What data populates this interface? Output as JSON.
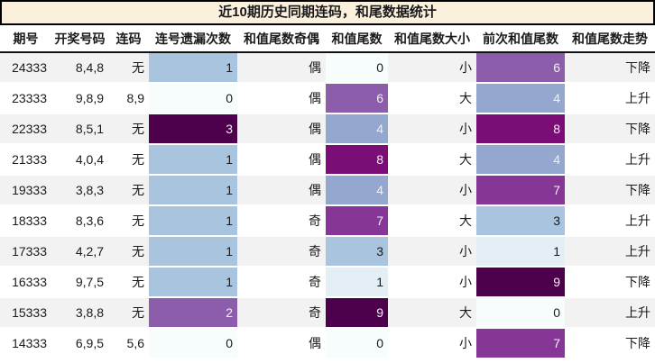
{
  "title": "近10期历史同期连码，和尾数据统计",
  "colors": {
    "title_bg": "#fbf0dc",
    "title_border": "#000000",
    "header_rule": "#111111",
    "row_stripe_odd": "#f2f2f2",
    "row_stripe_even": "#ffffff",
    "heat_text_light": "#f1f1f1",
    "heat_text_dark": "#1a1a1a",
    "heat_scale_low": "#f7fcfd",
    "heat_scale_high": "#4d004b"
  },
  "table": {
    "headers": [
      "期号",
      "开奖号码",
      "连码",
      "连号遗漏次数",
      "和值尾数奇偶",
      "和值尾数",
      "和值尾数大小",
      "前次和值尾数",
      "和值尾数走势"
    ],
    "rows": [
      {
        "period": "24333",
        "numbers": "8,4,8",
        "streak": "无",
        "miss": "1",
        "miss_bg": "#a9c4de",
        "miss_color": "#1a1a1a",
        "parity": "偶",
        "tail": "0",
        "tail_bg": "#f7fcfd",
        "tail_color": "#1a1a1a",
        "size": "小",
        "prev": "6",
        "prev_bg": "#8b5daa",
        "prev_color": "#f1f1f1",
        "trend": "下降"
      },
      {
        "period": "23333",
        "numbers": "9,8,9",
        "streak": "8,9",
        "miss": "0",
        "miss_bg": "#f7fcfd",
        "miss_color": "#1a1a1a",
        "parity": "偶",
        "tail": "6",
        "tail_bg": "#8b5daa",
        "tail_color": "#f1f1f1",
        "size": "大",
        "prev": "4",
        "prev_bg": "#94a7cf",
        "prev_color": "#f1f1f1",
        "trend": "上升"
      },
      {
        "period": "22333",
        "numbers": "8,5,1",
        "streak": "无",
        "miss": "3",
        "miss_bg": "#4d004b",
        "miss_color": "#f1f1f1",
        "parity": "偶",
        "tail": "4",
        "tail_bg": "#94a7cf",
        "tail_color": "#f1f1f1",
        "size": "小",
        "prev": "8",
        "prev_bg": "#7b0d77",
        "prev_color": "#f1f1f1",
        "trend": "下降"
      },
      {
        "period": "21333",
        "numbers": "4,0,4",
        "streak": "无",
        "miss": "1",
        "miss_bg": "#a9c4de",
        "miss_color": "#1a1a1a",
        "parity": "偶",
        "tail": "8",
        "tail_bg": "#7b0d77",
        "tail_color": "#f1f1f1",
        "size": "大",
        "prev": "4",
        "prev_bg": "#94a7cf",
        "prev_color": "#f1f1f1",
        "trend": "上升"
      },
      {
        "period": "19333",
        "numbers": "3,8,3",
        "streak": "无",
        "miss": "1",
        "miss_bg": "#a9c4de",
        "miss_color": "#1a1a1a",
        "parity": "偶",
        "tail": "4",
        "tail_bg": "#94a7cf",
        "tail_color": "#f1f1f1",
        "size": "小",
        "prev": "7",
        "prev_bg": "#863696",
        "prev_color": "#f1f1f1",
        "trend": "下降"
      },
      {
        "period": "18333",
        "numbers": "8,3,6",
        "streak": "无",
        "miss": "1",
        "miss_bg": "#a9c4de",
        "miss_color": "#1a1a1a",
        "parity": "奇",
        "tail": "7",
        "tail_bg": "#863696",
        "tail_color": "#f1f1f1",
        "size": "大",
        "prev": "3",
        "prev_bg": "#a9c4de",
        "prev_color": "#1a1a1a",
        "trend": "上升"
      },
      {
        "period": "17333",
        "numbers": "4,2,7",
        "streak": "无",
        "miss": "1",
        "miss_bg": "#a9c4de",
        "miss_color": "#1a1a1a",
        "parity": "奇",
        "tail": "3",
        "tail_bg": "#a9c4de",
        "tail_color": "#1a1a1a",
        "size": "小",
        "prev": "1",
        "prev_bg": "#e3eef5",
        "prev_color": "#1a1a1a",
        "trend": "上升"
      },
      {
        "period": "16333",
        "numbers": "9,7,5",
        "streak": "无",
        "miss": "1",
        "miss_bg": "#a9c4de",
        "miss_color": "#1a1a1a",
        "parity": "奇",
        "tail": "1",
        "tail_bg": "#e3eef5",
        "tail_color": "#1a1a1a",
        "size": "小",
        "prev": "9",
        "prev_bg": "#4d004b",
        "prev_color": "#f1f1f1",
        "trend": "下降"
      },
      {
        "period": "15333",
        "numbers": "3,8,8",
        "streak": "无",
        "miss": "2",
        "miss_bg": "#8b5daa",
        "miss_color": "#f1f1f1",
        "parity": "奇",
        "tail": "9",
        "tail_bg": "#4d004b",
        "tail_color": "#f1f1f1",
        "size": "大",
        "prev": "0",
        "prev_bg": "#f7fcfd",
        "prev_color": "#1a1a1a",
        "trend": "上升"
      },
      {
        "period": "14333",
        "numbers": "6,9,5",
        "streak": "5,6",
        "miss": "0",
        "miss_bg": "#f7fcfd",
        "miss_color": "#1a1a1a",
        "parity": "偶",
        "tail": "0",
        "tail_bg": "#f7fcfd",
        "tail_color": "#1a1a1a",
        "size": "小",
        "prev": "7",
        "prev_bg": "#863696",
        "prev_color": "#f1f1f1",
        "trend": "下降"
      }
    ]
  },
  "chart_data": {
    "type": "table",
    "title": "近10期历史同期连码，和尾数据统计",
    "columns": [
      "期号",
      "开奖号码",
      "连码",
      "连号遗漏次数",
      "和值尾数奇偶",
      "和值尾数",
      "和值尾数大小",
      "前次和值尾数",
      "和值尾数走势"
    ],
    "rows": [
      [
        "24333",
        "8,4,8",
        "无",
        1,
        "偶",
        0,
        "小",
        6,
        "下降"
      ],
      [
        "23333",
        "9,8,9",
        "8,9",
        0,
        "偶",
        6,
        "大",
        4,
        "上升"
      ],
      [
        "22333",
        "8,5,1",
        "无",
        3,
        "偶",
        4,
        "小",
        8,
        "下降"
      ],
      [
        "21333",
        "4,0,4",
        "无",
        1,
        "偶",
        8,
        "大",
        4,
        "上升"
      ],
      [
        "19333",
        "3,8,3",
        "无",
        1,
        "偶",
        4,
        "小",
        7,
        "下降"
      ],
      [
        "18333",
        "8,3,6",
        "无",
        1,
        "奇",
        7,
        "大",
        3,
        "上升"
      ],
      [
        "17333",
        "4,2,7",
        "无",
        1,
        "奇",
        3,
        "小",
        1,
        "上升"
      ],
      [
        "16333",
        "9,7,5",
        "无",
        1,
        "奇",
        1,
        "小",
        9,
        "下降"
      ],
      [
        "15333",
        "3,8,8",
        "无",
        2,
        "奇",
        9,
        "大",
        0,
        "上升"
      ],
      [
        "14333",
        "6,9,5",
        "5,6",
        0,
        "偶",
        0,
        "小",
        7,
        "下降"
      ]
    ],
    "heatmap_columns": [
      "连号遗漏次数",
      "和值尾数",
      "前次和值尾数"
    ],
    "heatmap_colormap": "BuPu (light #f7fcfd at min value to dark purple #4d004b at max value, scaled per column)",
    "layout": "striped rows (#f2f2f2 / #ffffff), title banner on cream background with black border"
  }
}
